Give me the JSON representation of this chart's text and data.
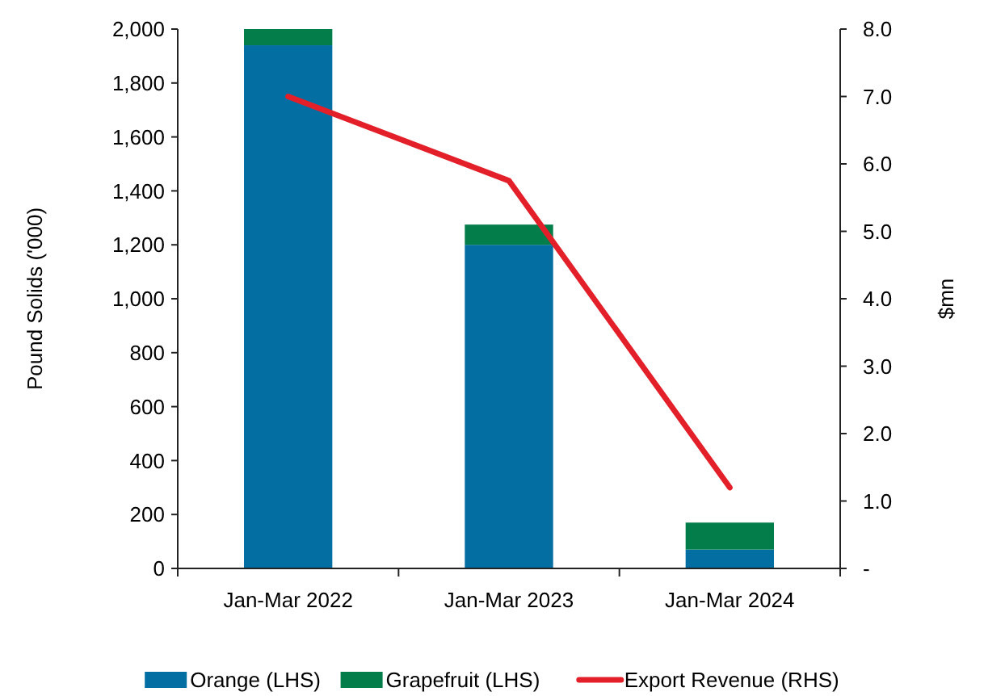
{
  "chart_data": {
    "type": "bar",
    "stacked": true,
    "categories": [
      "Jan-Mar 2022",
      "Jan-Mar 2023",
      "Jan-Mar 2024"
    ],
    "ylabel": "Pound Solids ('000)",
    "y2label": "$mn",
    "ylim": [
      0,
      2000
    ],
    "yticks": [
      0,
      {
        "value": 200,
        "label": "200"
      },
      {
        "value": 400,
        "label": "400"
      },
      {
        "value": 600,
        "label": "600"
      },
      {
        "value": 800,
        "label": "800"
      },
      {
        "value": 1000,
        "label": "1,000"
      },
      {
        "value": 1200,
        "label": "1,200"
      },
      {
        "value": 1400,
        "label": "1,400"
      },
      {
        "value": 1600,
        "label": "1,600"
      },
      {
        "value": 1800,
        "label": "1,800"
      },
      {
        "value": 2000,
        "label": "2,000"
      }
    ],
    "y2lim": [
      0,
      8
    ],
    "y2ticks": [
      {
        "value": 0,
        "label": "-"
      },
      {
        "value": 1,
        "label": "1.0"
      },
      {
        "value": 2,
        "label": "2.0"
      },
      {
        "value": 3,
        "label": "3.0"
      },
      {
        "value": 4,
        "label": "4.0"
      },
      {
        "value": 5,
        "label": "5.0"
      },
      {
        "value": 6,
        "label": "6.0"
      },
      {
        "value": 7,
        "label": "7.0"
      },
      {
        "value": 8,
        "label": "8.0"
      }
    ],
    "legend": "bottom",
    "grid": false,
    "series": [
      {
        "name": "Orange (LHS)",
        "color": "#036ea2",
        "values": [
          1940,
          1200,
          70
        ]
      },
      {
        "name": "Grapefruit (LHS)",
        "color": "#037d4a",
        "values": [
          60,
          75,
          100
        ]
      },
      {
        "name": "Export Revenue (RHS)",
        "type": "line",
        "axis": "y2",
        "color": "#e3202a",
        "values": [
          7.0,
          5.75,
          1.2
        ]
      }
    ]
  }
}
